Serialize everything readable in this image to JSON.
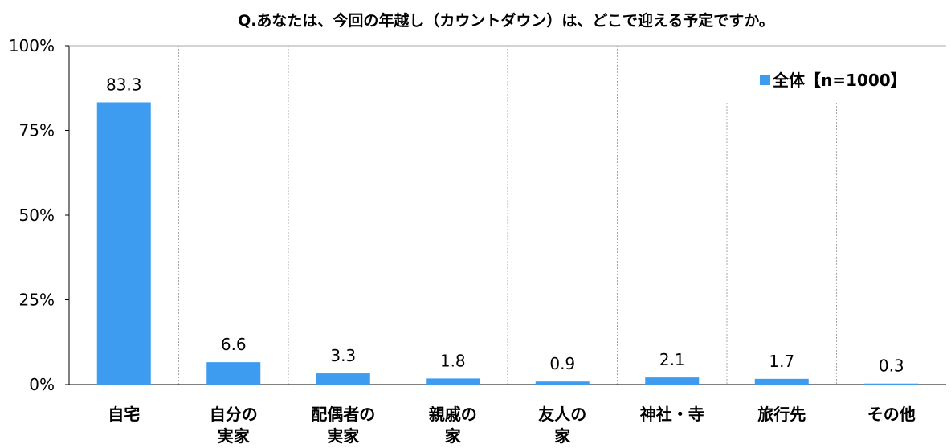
{
  "chart_data": {
    "type": "bar",
    "title": "Q.あなたは、今回の年越し（カウントダウン）は、どこで迎える予定ですか。",
    "categories": [
      [
        "自宅"
      ],
      [
        "自分の",
        "実家"
      ],
      [
        "配偶者の",
        "実家"
      ],
      [
        "親戚の",
        "家"
      ],
      [
        "友人の",
        "家"
      ],
      [
        "神社・寺"
      ],
      [
        "旅行先"
      ],
      [
        "その他"
      ]
    ],
    "series": [
      {
        "name": "全体【n=1000】",
        "values": [
          83.3,
          6.6,
          3.3,
          1.8,
          0.9,
          2.1,
          1.7,
          0.3
        ],
        "labels": [
          "83.3",
          "6.6",
          "3.3",
          "1.8",
          "0.9",
          "2.1",
          "1.7",
          "0.3"
        ],
        "color": "#3d9bf0"
      }
    ],
    "ylim": [
      0,
      100
    ],
    "yticks": [
      {
        "value": 100,
        "label": "100%"
      },
      {
        "value": 75,
        "label": "75%"
      },
      {
        "value": 50,
        "label": "50%"
      },
      {
        "value": 25,
        "label": "25%"
      },
      {
        "value": 0,
        "label": "0%"
      }
    ],
    "grid": "vertical-dashed-separators",
    "legend_position": "top-right"
  }
}
